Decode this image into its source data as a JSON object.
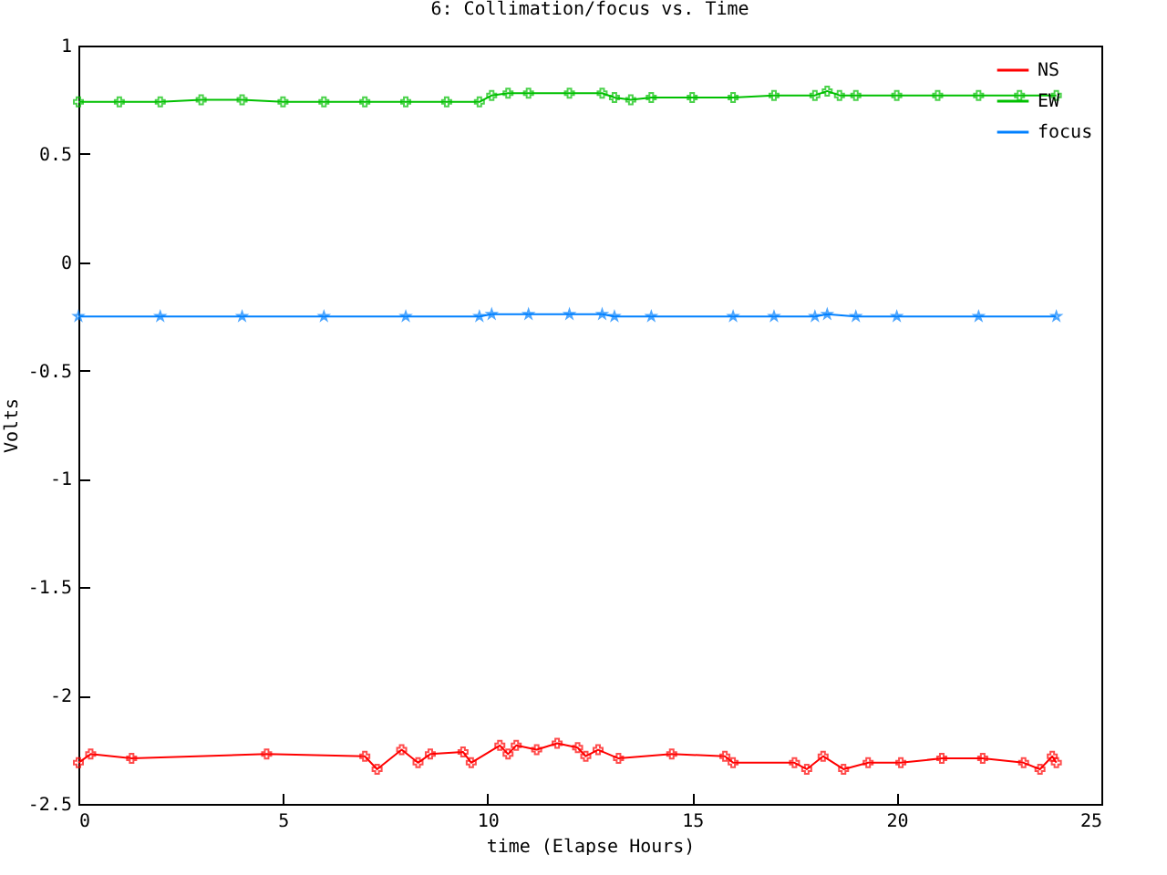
{
  "chart_data": {
    "type": "line",
    "title": "6: Collimation/focus vs. Time",
    "xlabel": "time (Elapse Hours)",
    "ylabel": "Volts",
    "xlim": [
      0,
      25
    ],
    "xticks": [
      0,
      5,
      10,
      15,
      20,
      25
    ],
    "ylim": [
      -2.5,
      1
    ],
    "yticks": [
      -2.5,
      -2,
      -1.5,
      -1,
      -0.5,
      0,
      0.5,
      1
    ],
    "grid": false,
    "legend": "top right",
    "series": [
      {
        "name": "NS",
        "color": "#ff0000",
        "marker": "cross",
        "x": [
          0,
          0.3,
          1.3,
          4.6,
          7,
          7.3,
          7.9,
          8.3,
          8.6,
          9.4,
          9.6,
          10.3,
          10.5,
          10.7,
          11.2,
          11.7,
          12.2,
          12.4,
          12.7,
          13.2,
          14.5,
          15.8,
          16,
          17.5,
          17.8,
          18.2,
          18.7,
          19.3,
          20.1,
          21.1,
          22.1,
          23.1,
          23.5,
          23.8,
          23.9
        ],
        "values": [
          -2.31,
          -2.27,
          -2.29,
          -2.27,
          -2.28,
          -2.34,
          -2.25,
          -2.31,
          -2.27,
          -2.26,
          -2.31,
          -2.23,
          -2.27,
          -2.23,
          -2.25,
          -2.22,
          -2.24,
          -2.28,
          -2.25,
          -2.29,
          -2.27,
          -2.28,
          -2.31,
          -2.31,
          -2.34,
          -2.28,
          -2.34,
          -2.31,
          -2.31,
          -2.29,
          -2.29,
          -2.31,
          -2.34,
          -2.28,
          -2.31
        ]
      },
      {
        "name": "EW",
        "color": "#00c000",
        "marker": "cross",
        "x": [
          0,
          1,
          2,
          3,
          4,
          5,
          6,
          7,
          8,
          9,
          9.8,
          10.1,
          10.5,
          11,
          12,
          12.8,
          13.1,
          13.5,
          14,
          15,
          16,
          17,
          18,
          18.3,
          18.6,
          19,
          20,
          21,
          22,
          23,
          23.9
        ],
        "values": [
          0.74,
          0.74,
          0.74,
          0.75,
          0.75,
          0.74,
          0.74,
          0.74,
          0.74,
          0.74,
          0.74,
          0.77,
          0.78,
          0.78,
          0.78,
          0.78,
          0.76,
          0.75,
          0.76,
          0.76,
          0.76,
          0.77,
          0.77,
          0.79,
          0.77,
          0.77,
          0.77,
          0.77,
          0.77,
          0.77,
          0.77
        ]
      },
      {
        "name": "focus",
        "color": "#0080ff",
        "marker": "star",
        "x": [
          0,
          2,
          4,
          6,
          8,
          9.8,
          10.1,
          11,
          12,
          12.8,
          13.1,
          14,
          16,
          17,
          18,
          18.3,
          19,
          20,
          22,
          23.9
        ],
        "values": [
          -0.25,
          -0.25,
          -0.25,
          -0.25,
          -0.25,
          -0.25,
          -0.24,
          -0.24,
          -0.24,
          -0.24,
          -0.25,
          -0.25,
          -0.25,
          -0.25,
          -0.25,
          -0.24,
          -0.25,
          -0.25,
          -0.25,
          -0.25
        ]
      }
    ]
  }
}
